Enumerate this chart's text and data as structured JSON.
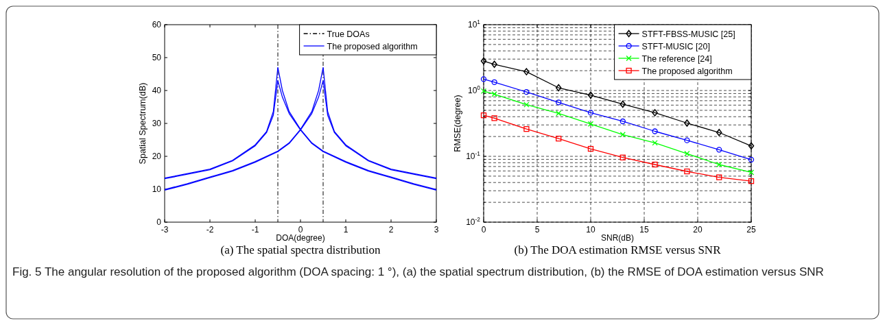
{
  "chart_data": [
    {
      "type": "line",
      "xlabel": "DOA(degree)",
      "ylabel": "Spatial Spectrum(dB)",
      "xlim": [
        -3,
        3
      ],
      "ylim": [
        0,
        60
      ],
      "xticks": [
        -3,
        -2,
        -1,
        0,
        1,
        2,
        3
      ],
      "yticks": [
        0,
        10,
        20,
        30,
        40,
        50,
        60
      ],
      "legend": "top right",
      "annotations": [
        "(a) The spatial spectra distribution",
        "Fig. 5 The angular resolution of the proposed algorithm (DOA spacing: 1 °), (a) the spatial spectrum distribution, (b) the RMSE of DOA estimation versus SNR"
      ],
      "ref_lines": [
        {
          "axis": "x",
          "value": -0.5,
          "label": "True DOAs",
          "color": "#000000",
          "line_style": "dashed"
        },
        {
          "axis": "x",
          "value": 0.5,
          "color": "#000000",
          "line_style": "dashed"
        }
      ],
      "series": [
        {
          "name": "The proposed algorithm",
          "color": "#0000ff",
          "x": [
            -3,
            -2,
            -1.5,
            -1,
            -0.75,
            -0.6,
            -0.5,
            -0.4,
            -0.25,
            0,
            0.25,
            0.5,
            1,
            1.5,
            2,
            2.5,
            3
          ],
          "values": [
            13.4,
            16.1,
            18.8,
            23.5,
            27.5,
            33.6,
            47,
            40,
            33.6,
            28.2,
            24.1,
            21.6,
            18.4,
            15.7,
            13.7,
            11.7,
            9.9
          ]
        },
        {
          "color": "#0000ff",
          "x": [
            -3,
            -2,
            -1.5,
            -1,
            -0.75,
            -0.6,
            -0.5,
            -0.4,
            -0.25,
            0,
            0.25,
            0.5,
            1,
            1.5,
            2,
            2.5,
            3
          ],
          "values": [
            13.2,
            15.9,
            18.6,
            23.2,
            27.2,
            32.5,
            43,
            38,
            33,
            28,
            23.9,
            21.4,
            18.2,
            15.5,
            13.5,
            11.5,
            9.7
          ]
        },
        {
          "color": "#0000ff",
          "x": [
            -3,
            -2.5,
            -2,
            -1.5,
            -1,
            -0.5,
            -0.25,
            0,
            0.25,
            0.4,
            0.5,
            0.6,
            0.75,
            1,
            1.5,
            2,
            3
          ],
          "values": [
            9.9,
            11.7,
            13.7,
            15.7,
            18.4,
            21.6,
            24.1,
            28.2,
            33.6,
            40,
            47,
            33.6,
            27.5,
            23.5,
            18.8,
            16.1,
            13.4
          ]
        },
        {
          "color": "#0000ff",
          "x": [
            -3,
            -2.5,
            -2,
            -1.5,
            -1,
            -0.5,
            -0.25,
            0,
            0.25,
            0.4,
            0.5,
            0.6,
            0.75,
            1,
            1.5,
            2,
            3
          ],
          "values": [
            9.7,
            11.5,
            13.5,
            15.5,
            18.2,
            21.4,
            23.9,
            28,
            33,
            38,
            43,
            32.5,
            27.2,
            23.2,
            18.6,
            15.9,
            13.2
          ]
        }
      ]
    },
    {
      "type": "line",
      "xlabel": "SNR(dB)",
      "ylabel": "RMSE(degree)",
      "log": "y",
      "grid": true,
      "xlim": [
        0,
        25
      ],
      "ylim": [
        0.01,
        10
      ],
      "xticks": [
        0,
        5,
        10,
        15,
        20,
        25
      ],
      "yticks": [
        {
          "value": 0.01,
          "label": "10$^{-2}$"
        },
        {
          "value": 0.02,
          "label": null
        },
        {
          "value": 0.03,
          "label": null
        },
        {
          "value": 0.04,
          "label": null
        },
        {
          "value": 0.05,
          "label": null
        },
        {
          "value": 0.06,
          "label": null
        },
        {
          "value": 0.07,
          "label": null
        },
        {
          "value": 0.08,
          "label": null
        },
        {
          "value": 0.09,
          "label": null
        },
        {
          "value": 0.1,
          "label": "10$^{-1}$"
        },
        {
          "value": 0.2,
          "label": null
        },
        {
          "value": 0.3,
          "label": null
        },
        {
          "value": 0.4,
          "label": null
        },
        {
          "value": 0.5,
          "label": null
        },
        {
          "value": 0.6,
          "label": null
        },
        {
          "value": 0.7,
          "label": null
        },
        {
          "value": 0.8,
          "label": null
        },
        {
          "value": 0.9,
          "label": null
        },
        {
          "value": 1,
          "label": "10$^{0}$"
        },
        {
          "value": 2,
          "label": null
        },
        {
          "value": 3,
          "label": null
        },
        {
          "value": 4,
          "label": null
        },
        {
          "value": 5,
          "label": null
        },
        {
          "value": 6,
          "label": null
        },
        {
          "value": 7,
          "label": null
        },
        {
          "value": 8,
          "label": null
        },
        {
          "value": 9,
          "label": null
        },
        {
          "value": 10,
          "label": "10$^{1}$"
        }
      ],
      "legend": "top right",
      "annotations": [
        "(b) The DOA estimation RMSE versus SNR"
      ],
      "x": [
        0,
        1,
        4,
        7,
        10,
        13,
        16,
        19,
        22,
        25
      ],
      "series": [
        {
          "name": "STFT-FBSS-MUSIC [25]",
          "color": "#000000",
          "marker": "diamond",
          "values": [
            2.8,
            2.5,
            1.93,
            1.1,
            0.85,
            0.62,
            0.46,
            0.32,
            0.23,
            0.144
          ]
        },
        {
          "name": "STFT-MUSIC [20]",
          "color": "#0000ff",
          "marker": "circle",
          "values": [
            1.49,
            1.34,
            0.95,
            0.66,
            0.46,
            0.34,
            0.24,
            0.175,
            0.126,
            0.089
          ]
        },
        {
          "name": "The reference [24]",
          "color": "#00ff00",
          "marker": "cross",
          "values": [
            0.98,
            0.88,
            0.61,
            0.45,
            0.31,
            0.214,
            0.16,
            0.11,
            0.075,
            0.057
          ]
        },
        {
          "name": "The proposed algorithm",
          "color": "#ff0000",
          "marker": "square",
          "values": [
            0.42,
            0.38,
            0.26,
            0.186,
            0.13,
            0.096,
            0.075,
            0.059,
            0.048,
            0.042
          ]
        }
      ]
    }
  ]
}
